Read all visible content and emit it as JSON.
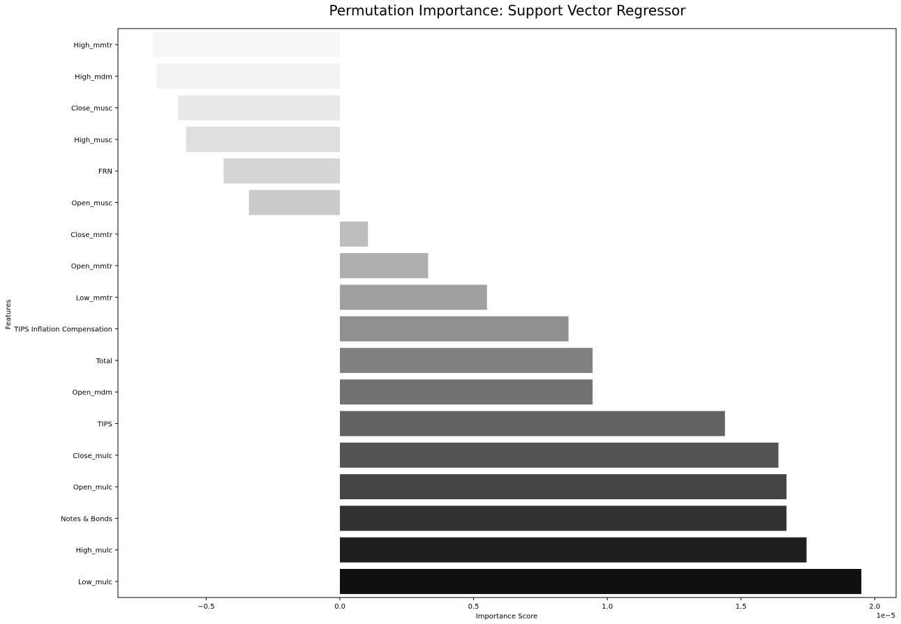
{
  "chart_data": {
    "type": "bar",
    "orientation": "horizontal",
    "title": "Permutation Importance: Support Vector Regressor",
    "xlabel": "Importance Score",
    "ylabel": "Features",
    "x_offset_label": "1e−5",
    "xlim": [
      -0.83,
      2.08
    ],
    "xticks": [
      -0.5,
      0.0,
      0.5,
      1.0,
      1.5,
      2.0
    ],
    "xtick_labels": [
      "−0.5",
      "0.0",
      "0.5",
      "1.0",
      "1.5",
      "2.0"
    ],
    "grid": false,
    "categories": [
      "High_mmtr",
      "High_mdm",
      "Close_musc",
      "High_musc",
      "FRN",
      "Open_musc",
      "Close_mmtr",
      "Open_mmtr",
      "Low_mmtr",
      "TIPS Inflation Compensation",
      "Total",
      "Open_mdm",
      "TIPS",
      "Close_mulc",
      "Open_mulc",
      "Notes & Bonds",
      "High_mulc",
      "Low_mulc"
    ],
    "values": [
      -0.7,
      -0.685,
      -0.605,
      -0.575,
      -0.435,
      -0.34,
      0.105,
      0.33,
      0.55,
      0.855,
      0.945,
      0.945,
      1.44,
      1.64,
      1.67,
      1.67,
      1.745,
      1.95
    ],
    "colors": [
      "#f7f7f7",
      "#f2f2f2",
      "#e8e8e8",
      "#dedede",
      "#d5d5d5",
      "#cacaca",
      "#bdbdbd",
      "#aeaeae",
      "#a0a0a0",
      "#909090",
      "#808080",
      "#727272",
      "#636363",
      "#545454",
      "#444444",
      "#313131",
      "#1f1f1f",
      "#111111"
    ]
  }
}
